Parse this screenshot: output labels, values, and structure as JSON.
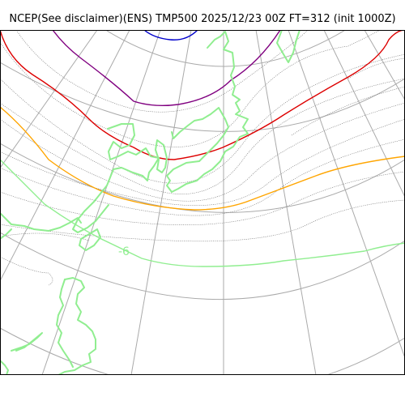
{
  "title": "NCEP(See disclaimer)(ENS) TMP500 2025/12/23 00Z FT=312 (init 1000Z)",
  "contours": [
    {
      "id": "blue",
      "color": "#0000cc"
    },
    {
      "id": "purple",
      "color": "#800080"
    },
    {
      "id": "red",
      "color": "#dd0000"
    },
    {
      "id": "orange",
      "color": "#ffa500"
    },
    {
      "id": "green",
      "color": "#90ee90"
    }
  ],
  "contour_label": {
    "text": "-6",
    "color": "#90ee90"
  },
  "coastline_color": "#90ee90",
  "gridline_color": "#aaaaaa"
}
